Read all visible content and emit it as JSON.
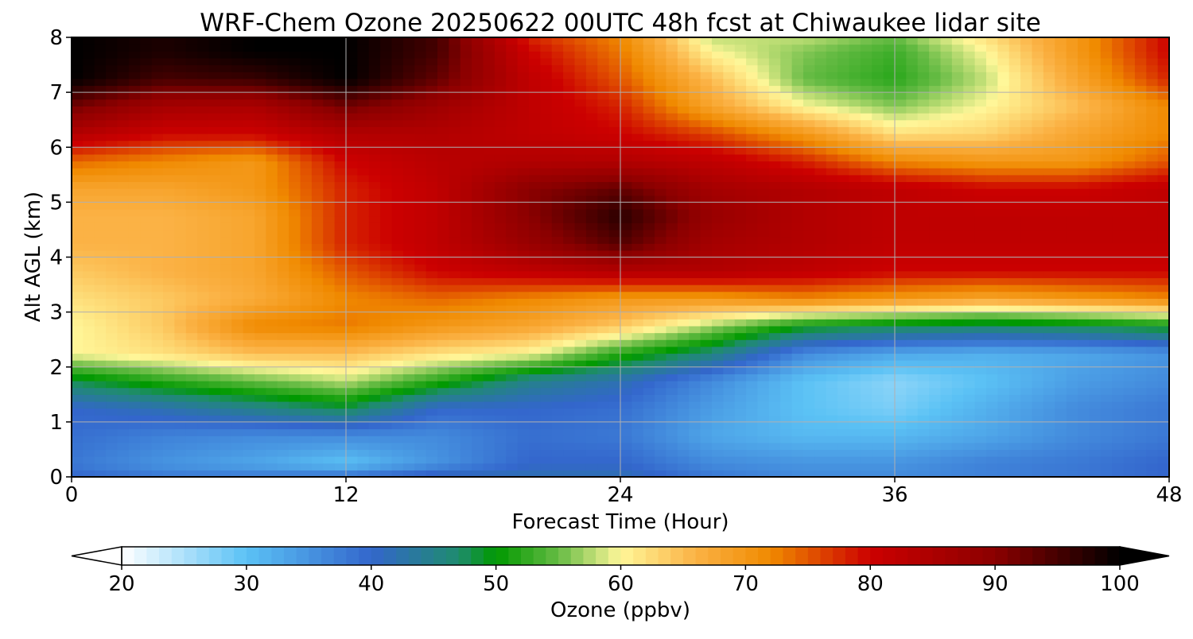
{
  "chart_data": {
    "type": "heatmap",
    "title": "WRF-Chem Ozone  20250622 00UTC 48h fcst at Chiwaukee lidar site",
    "xlabel": "Forecast Time (Hour)",
    "ylabel": "Alt AGL (km)",
    "xlim": [
      0,
      48
    ],
    "ylim": [
      0,
      8
    ],
    "xticks": [
      0,
      12,
      24,
      36,
      48
    ],
    "yticks": [
      0,
      1,
      2,
      3,
      4,
      5,
      6,
      7,
      8
    ],
    "grid": true,
    "colorbar": {
      "label": "Ozone  (ppbv)",
      "range": [
        20,
        100
      ],
      "ticks": [
        20,
        30,
        40,
        50,
        60,
        70,
        80,
        90,
        100
      ],
      "extend": "both",
      "colors": [
        "#ffffff",
        "#5bc2f5",
        "#3366cc",
        "#1f8c6e",
        "#009900",
        "#66bb44",
        "#fff799",
        "#fbb245",
        "#f08a00",
        "#cc0000",
        "#8b0000",
        "#000000"
      ],
      "color_stops": [
        20,
        30,
        40,
        47,
        50,
        55,
        60,
        66,
        72,
        80,
        90,
        100
      ]
    },
    "x": [
      0,
      4,
      8,
      12,
      16,
      20,
      24,
      28,
      32,
      36,
      40,
      44,
      48
    ],
    "y": [
      0,
      0.25,
      0.75,
      1.25,
      1.75,
      2.25,
      2.75,
      3.25,
      3.75,
      4.25,
      4.75,
      5.25,
      5.75,
      6.25,
      6.75,
      7.25,
      7.75,
      8
    ],
    "z": [
      [
        40,
        38,
        38,
        39,
        42,
        42,
        42,
        38,
        36,
        36,
        37,
        38,
        40
      ],
      [
        38,
        35,
        33,
        30,
        35,
        40,
        40,
        36,
        35,
        35,
        37,
        38,
        40
      ],
      [
        39,
        37,
        36,
        36,
        36,
        39,
        38,
        33,
        31,
        31,
        33,
        36,
        38
      ],
      [
        40,
        42,
        45,
        48,
        40,
        40,
        39,
        34,
        30,
        28,
        32,
        36,
        38
      ],
      [
        48,
        52,
        55,
        58,
        52,
        45,
        42,
        36,
        30,
        27,
        30,
        34,
        36
      ],
      [
        60,
        62,
        65,
        65,
        62,
        60,
        52,
        46,
        36,
        33,
        32,
        33,
        35
      ],
      [
        60,
        64,
        72,
        73,
        70,
        68,
        64,
        57,
        50,
        48,
        47,
        48,
        50
      ],
      [
        62,
        64,
        67,
        72,
        74,
        72,
        70,
        70,
        72,
        70,
        68,
        70,
        72
      ],
      [
        64,
        66,
        68,
        75,
        80,
        82,
        84,
        84,
        82,
        80,
        80,
        80,
        80
      ],
      [
        66,
        66,
        68,
        78,
        82,
        88,
        94,
        86,
        84,
        82,
        82,
        82,
        82
      ],
      [
        66,
        66,
        68,
        78,
        82,
        90,
        97,
        88,
        84,
        82,
        82,
        82,
        82
      ],
      [
        68,
        68,
        70,
        78,
        82,
        90,
        93,
        86,
        84,
        82,
        80,
        80,
        82
      ],
      [
        74,
        72,
        70,
        80,
        83,
        84,
        84,
        82,
        78,
        72,
        70,
        70,
        75
      ],
      [
        84,
        80,
        80,
        84,
        84,
        82,
        80,
        76,
        70,
        62,
        63,
        68,
        72
      ],
      [
        92,
        86,
        85,
        92,
        87,
        82,
        78,
        68,
        60,
        56,
        60,
        65,
        72
      ],
      [
        100,
        95,
        96,
        100,
        93,
        82,
        75,
        65,
        55,
        52,
        58,
        68,
        78
      ],
      [
        100,
        98,
        100,
        100,
        95,
        80,
        73,
        60,
        56,
        53,
        60,
        70,
        80
      ],
      [
        100,
        98,
        100,
        100,
        95,
        78,
        72,
        58,
        58,
        55,
        62,
        70,
        80
      ]
    ]
  }
}
